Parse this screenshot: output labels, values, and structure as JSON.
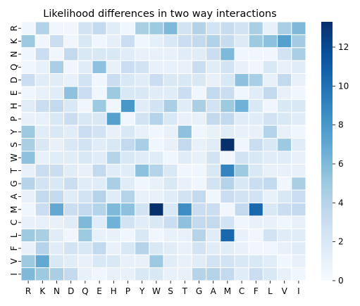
{
  "chart_data": {
    "type": "heatmap",
    "title": "Likelihood differences in two way interactions",
    "xlabel": "",
    "ylabel": "",
    "x_categories": [
      "R",
      "K",
      "N",
      "D",
      "Q",
      "E",
      "H",
      "P",
      "Y",
      "W",
      "S",
      "T",
      "G",
      "A",
      "M",
      "C",
      "F",
      "L",
      "V",
      "I"
    ],
    "y_categories": [
      "R",
      "K",
      "N",
      "Q",
      "D",
      "E",
      "H",
      "P",
      "Y",
      "S",
      "W",
      "T",
      "G",
      "A",
      "M",
      "C",
      "L",
      "F",
      "V",
      "I"
    ],
    "values": [
      [
        0.5,
        4.2,
        0.5,
        0.5,
        2.5,
        3.5,
        1.5,
        0.5,
        4.5,
        5,
        6,
        2.5,
        4.2,
        2.5,
        3.2,
        2.5,
        4.5,
        1,
        4.5,
        6
      ],
      [
        5,
        0.5,
        3,
        0.5,
        2,
        0.5,
        1.2,
        3,
        0.5,
        1.2,
        2,
        3,
        3.5,
        4.2,
        3.2,
        1.8,
        5,
        5.5,
        7.5,
        4.8
      ],
      [
        0.5,
        3,
        0.5,
        3.5,
        2,
        2,
        2,
        1.5,
        1,
        1,
        1,
        1.5,
        1.5,
        3,
        6,
        0.5,
        0.5,
        0.5,
        2.5,
        4.5
      ],
      [
        0.5,
        1,
        4.5,
        0.5,
        1.5,
        5.5,
        1,
        3,
        2.5,
        1,
        1,
        1,
        3,
        1.5,
        2.5,
        1,
        0.5,
        2,
        1,
        1.5
      ],
      [
        3,
        1.5,
        1.5,
        1,
        2.5,
        0.5,
        3,
        2,
        1.5,
        3,
        2,
        2,
        2,
        1,
        2,
        5.5,
        4.5,
        1,
        3.5,
        1
      ],
      [
        0.5,
        1,
        1.5,
        5.5,
        3,
        0.5,
        5,
        2,
        2,
        1.5,
        1.5,
        3,
        0.5,
        3.5,
        3,
        0.5,
        1.5,
        3.5,
        1,
        0.5
      ],
      [
        1.5,
        3,
        3.5,
        2,
        0.5,
        5,
        0.5,
        8,
        1.5,
        2.5,
        4.5,
        1.5,
        4.5,
        2.5,
        5,
        6.5,
        2,
        0.5,
        2,
        2
      ],
      [
        1,
        1,
        2,
        3,
        2,
        2,
        7.5,
        0.5,
        2.5,
        4,
        2,
        1,
        1,
        3.5,
        3.5,
        1.5,
        1.5,
        2.5,
        2,
        1.5
      ],
      [
        5,
        1.5,
        2,
        1.5,
        3,
        2.5,
        1,
        2,
        1,
        0.5,
        1,
        5.5,
        0.5,
        1,
        1.5,
        1,
        1,
        4,
        1,
        0.5
      ],
      [
        4.5,
        2,
        1,
        2,
        2.5,
        1.5,
        2,
        3.5,
        4.5,
        0.5,
        1,
        3.5,
        1,
        1.5,
        13.3,
        0.5,
        3,
        2,
        5,
        1.5
      ],
      [
        5.5,
        1,
        1.5,
        1.5,
        2,
        1.5,
        4,
        2,
        1.5,
        1.5,
        0.5,
        1.5,
        1,
        2.5,
        0.5,
        2.5,
        2,
        1.5,
        1.5,
        1
      ],
      [
        1,
        3,
        3,
        1.5,
        1,
        3.5,
        1.5,
        1.5,
        5.5,
        4,
        2,
        0.5,
        0.5,
        2,
        9,
        5,
        2,
        1,
        1,
        1
      ],
      [
        4,
        2.5,
        2,
        3,
        1.5,
        1.5,
        4.5,
        1.5,
        0.5,
        1,
        2,
        1,
        0.5,
        2.5,
        4,
        2,
        3,
        3.5,
        0.5,
        4.5
      ],
      [
        1,
        3.5,
        3.5,
        1.5,
        2.5,
        4,
        1.5,
        4,
        1,
        1,
        1.5,
        2.5,
        3.5,
        0.5,
        3,
        2.5,
        2.5,
        1,
        2,
        3
      ],
      [
        0.5,
        3,
        7,
        3,
        3.5,
        4,
        6,
        5.5,
        2.5,
        13.3,
        2,
        8.5,
        3,
        3,
        0.5,
        3.5,
        10.5,
        2,
        3,
        3.5
      ],
      [
        1,
        1,
        1,
        1.5,
        6,
        1.5,
        6.5,
        2.5,
        1.5,
        2,
        3,
        5.5,
        3.5,
        3.5,
        2.5,
        0.5,
        1,
        1,
        0.5,
        1
      ],
      [
        5,
        4.5,
        1.5,
        0.5,
        5,
        1,
        1,
        0.5,
        2,
        0.5,
        1,
        1,
        4,
        1.5,
        10.5,
        1,
        0.5,
        2.5,
        1.5,
        1.5
      ],
      [
        1,
        4,
        1.5,
        2.5,
        2,
        3.5,
        1,
        2,
        4,
        2,
        1.5,
        1,
        2.5,
        1.5,
        1.5,
        1,
        0.5,
        0.5,
        1,
        1.5
      ],
      [
        5,
        7,
        2,
        1.5,
        1,
        2,
        2,
        1,
        1,
        5,
        1.5,
        1,
        1.5,
        2.5,
        2.5,
        2,
        2,
        1.5,
        0.5,
        1
      ],
      [
        6,
        5,
        4.5,
        3.5,
        1,
        0.5,
        1,
        1,
        2,
        2,
        1,
        1,
        4,
        4,
        3.5,
        1.5,
        3,
        2,
        1,
        0.5
      ]
    ],
    "vmin": 0,
    "vmax": 13.3,
    "colorbar_ticks": [
      0,
      2,
      4,
      6,
      8,
      10,
      12
    ],
    "colormap": [
      "#f7fbff",
      "#deebf7",
      "#c6dbef",
      "#9ecae1",
      "#6baed6",
      "#4292c6",
      "#2171b5",
      "#08519c",
      "#08306b"
    ],
    "grid_line_color": "#ffffff",
    "tick_color": "#000000"
  }
}
